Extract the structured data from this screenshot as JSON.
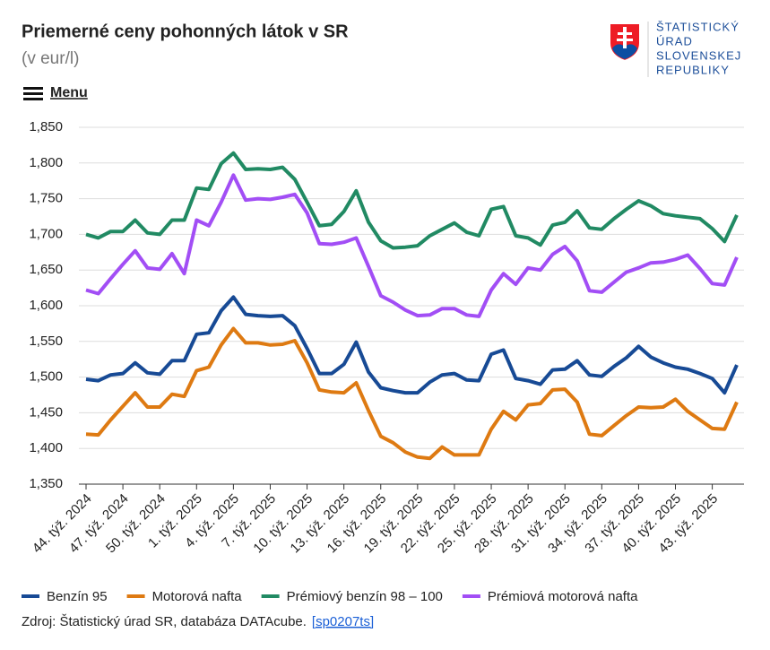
{
  "header": {
    "menu": "Menu",
    "logo": [
      "ŠTATISTICKÝ",
      "ÚRAD",
      "SLOVENSKEJ",
      "REPUBLIKY"
    ]
  },
  "source": {
    "text": "Zdroj: Štatistický úrad SR, databáza DATAcube.",
    "link": "[sp0207ts]"
  },
  "chart_data": {
    "type": "line",
    "title": "Priemerné ceny pohonných látok v SR",
    "subtitle": "(v eur/l)",
    "categories": [
      "44. týž. 2024",
      null,
      null,
      "47. týž. 2024",
      null,
      null,
      "50. týž. 2024",
      null,
      null,
      "1. týž. 2025",
      null,
      null,
      "4. týž. 2025",
      null,
      null,
      "7. týž. 2025",
      null,
      null,
      "10. týž. 2025",
      null,
      null,
      "13. týž. 2025",
      null,
      null,
      "16. týž. 2025",
      null,
      null,
      "19. týž. 2025",
      null,
      null,
      "22. týž. 2025",
      null,
      null,
      "25. týž. 2025",
      null,
      null,
      "28. týž. 2025",
      null,
      null,
      "31. týž. 2025",
      null,
      null,
      "34. týž. 2025",
      null,
      null,
      "37. týž. 2025",
      null,
      null,
      "40. týž. 2025",
      null,
      null,
      "43. týž. 2025",
      null,
      null
    ],
    "series": [
      {
        "name": "Benzín 95",
        "color": "#174a95",
        "values": [
          1497,
          1495,
          1503,
          1505,
          1520,
          1506,
          1504,
          1523,
          1523,
          1560,
          1562,
          1593,
          1612,
          1588,
          1586,
          1585,
          1586,
          1572,
          1540,
          1505,
          1505,
          1518,
          1549,
          1507,
          1485,
          1481,
          1478,
          1478,
          1493,
          1503,
          1505,
          1496,
          1495,
          1532,
          1538,
          1498,
          1495,
          1490,
          1510,
          1511,
          1523,
          1503,
          1501,
          1515,
          1527,
          1543,
          1528,
          1520,
          1514,
          1511,
          1505,
          1498,
          1478,
          1517
        ]
      },
      {
        "name": "Motorová nafta",
        "color": "#de7a12",
        "values": [
          1420,
          1419,
          1440,
          1459,
          1478,
          1458,
          1458,
          1476,
          1473,
          1509,
          1514,
          1545,
          1568,
          1548,
          1548,
          1545,
          1546,
          1551,
          1520,
          1482,
          1479,
          1478,
          1492,
          1453,
          1417,
          1408,
          1395,
          1388,
          1386,
          1402,
          1391,
          1391,
          1391,
          1427,
          1452,
          1440,
          1461,
          1463,
          1482,
          1483,
          1465,
          1420,
          1418,
          1432,
          1446,
          1458,
          1457,
          1458,
          1469,
          1452,
          1440,
          1428,
          1427,
          1465
        ]
      },
      {
        "name": "Prémiový benzín 98 – 100",
        "color": "#218a63",
        "values": [
          1700,
          1695,
          1704,
          1704,
          1720,
          1702,
          1700,
          1720,
          1720,
          1765,
          1763,
          1799,
          1814,
          1791,
          1792,
          1791,
          1794,
          1777,
          1745,
          1712,
          1714,
          1732,
          1761,
          1717,
          1691,
          1681,
          1682,
          1684,
          1698,
          1707,
          1716,
          1703,
          1698,
          1735,
          1739,
          1698,
          1695,
          1685,
          1713,
          1717,
          1733,
          1709,
          1707,
          1722,
          1735,
          1747,
          1740,
          1729,
          1726,
          1724,
          1722,
          1708,
          1690,
          1727
        ]
      },
      {
        "name": "Prémiová motorová nafta",
        "color": "#a24ef5",
        "values": [
          1622,
          1617,
          1638,
          1658,
          1677,
          1653,
          1651,
          1673,
          1645,
          1720,
          1712,
          1745,
          1783,
          1748,
          1750,
          1749,
          1752,
          1756,
          1730,
          1687,
          1686,
          1689,
          1695,
          1655,
          1614,
          1605,
          1594,
          1586,
          1587,
          1596,
          1596,
          1587,
          1585,
          1622,
          1645,
          1630,
          1653,
          1650,
          1672,
          1683,
          1663,
          1621,
          1619,
          1633,
          1647,
          1653,
          1660,
          1661,
          1665,
          1671,
          1652,
          1631,
          1629,
          1668
        ]
      }
    ],
    "ylim": [
      1350,
      1850
    ],
    "yticks": [
      {
        "value": 1350,
        "label": "1,350"
      },
      {
        "value": 1400,
        "label": "1,400"
      },
      {
        "value": 1450,
        "label": "1,450"
      },
      {
        "value": 1500,
        "label": "1,500"
      },
      {
        "value": 1550,
        "label": "1,550"
      },
      {
        "value": 1600,
        "label": "1,600"
      },
      {
        "value": 1650,
        "label": "1,650"
      },
      {
        "value": 1700,
        "label": "1,700"
      },
      {
        "value": 1750,
        "label": "1,750"
      },
      {
        "value": 1800,
        "label": "1,800"
      },
      {
        "value": 1850,
        "label": "1,850"
      }
    ],
    "grid": true
  }
}
